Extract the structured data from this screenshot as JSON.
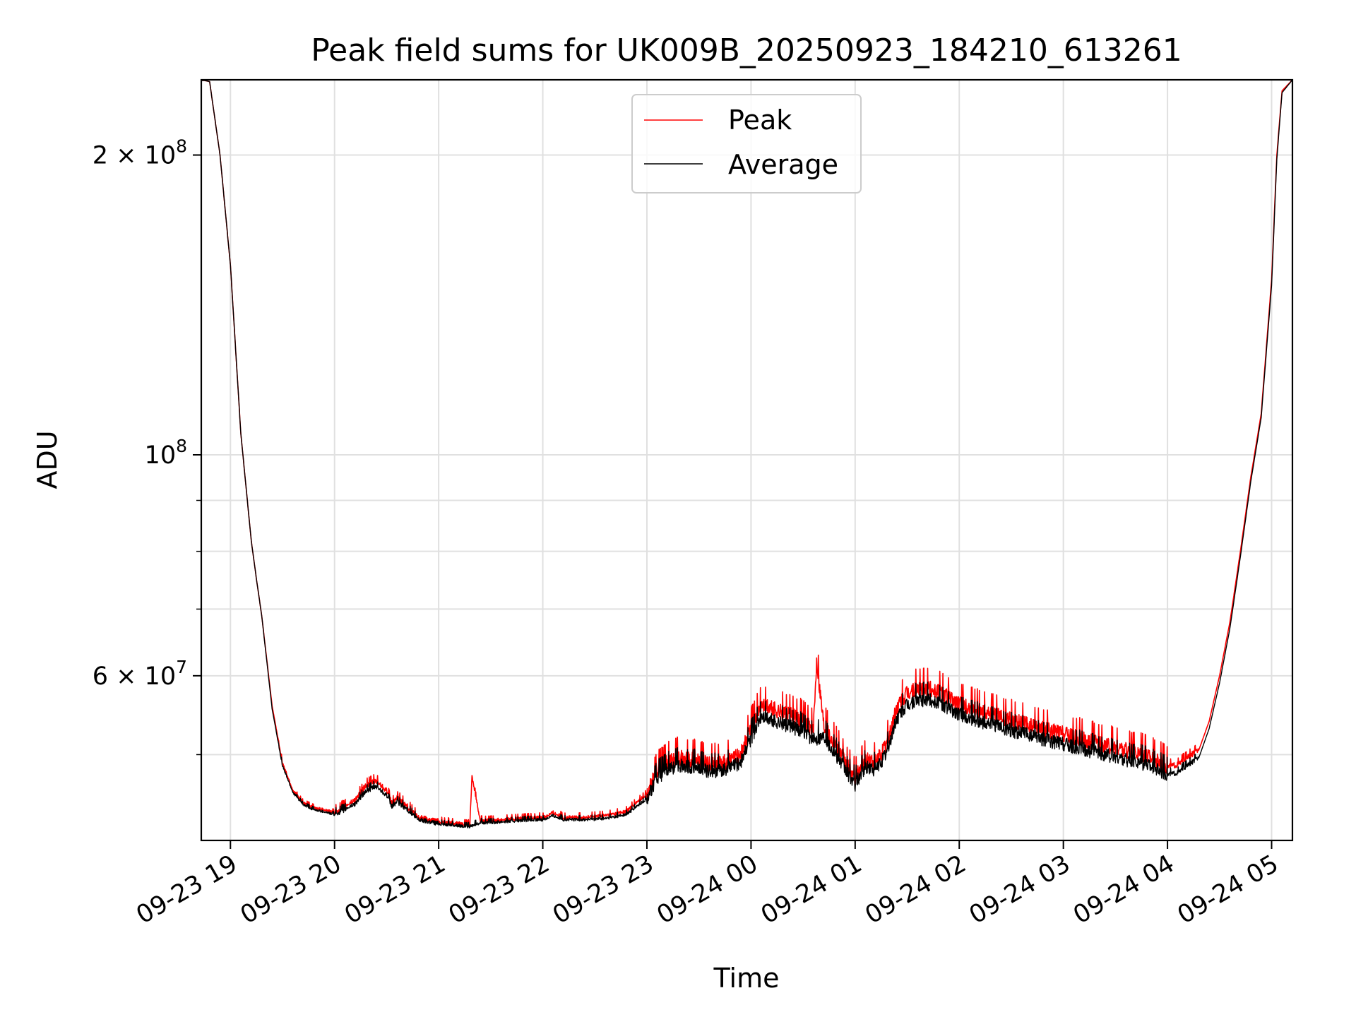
{
  "chart_data": {
    "type": "line",
    "title": "Peak field sums for UK009B_20250923_184210_613261",
    "xlabel": "Time",
    "ylabel": "ADU",
    "yscale": "log",
    "ylim": [
      41000000,
      238000000
    ],
    "x_unit": "hours since 09-23 19:00",
    "xlim": [
      -0.28,
      10.2
    ],
    "x_ticks": [
      {
        "value": 0,
        "label": "09-23 19"
      },
      {
        "value": 1,
        "label": "09-23 20"
      },
      {
        "value": 2,
        "label": "09-23 21"
      },
      {
        "value": 3,
        "label": "09-23 22"
      },
      {
        "value": 4,
        "label": "09-23 23"
      },
      {
        "value": 5,
        "label": "09-24 00"
      },
      {
        "value": 6,
        "label": "09-24 01"
      },
      {
        "value": 7,
        "label": "09-24 02"
      },
      {
        "value": 8,
        "label": "09-24 03"
      },
      {
        "value": 9,
        "label": "09-24 04"
      },
      {
        "value": 10,
        "label": "09-24 05"
      }
    ],
    "y_major_ticks": [
      {
        "value": 200000000,
        "mantissa": "2",
        "exponent": "8"
      },
      {
        "value": 100000000,
        "mantissa": "",
        "exponent": "8"
      },
      {
        "value": 60000000,
        "mantissa": "6",
        "exponent": "7"
      }
    ],
    "y_minor_ticks": [
      50000000,
      70000000,
      80000000,
      90000000
    ],
    "grid": true,
    "legend_position": "top-center",
    "series": [
      {
        "name": "Peak",
        "color": "#ff0000",
        "x": [
          -0.28,
          -0.2,
          -0.1,
          0,
          0.1,
          0.2,
          0.25,
          0.3,
          0.4,
          0.5,
          0.6,
          0.7,
          0.8,
          0.9,
          1.0,
          1.1,
          1.2,
          1.3,
          1.4,
          1.5,
          1.55,
          1.6,
          1.7,
          1.8,
          1.9,
          2.0,
          2.1,
          2.2,
          2.3,
          2.32,
          2.4,
          2.5,
          2.6,
          2.8,
          3.0,
          3.1,
          3.2,
          3.4,
          3.6,
          3.8,
          3.9,
          4.0,
          4.1,
          4.2,
          4.3,
          4.4,
          4.5,
          4.6,
          4.7,
          4.8,
          4.9,
          5.0,
          5.1,
          5.2,
          5.3,
          5.4,
          5.5,
          5.6,
          5.63,
          5.7,
          5.8,
          5.9,
          6.0,
          6.1,
          6.2,
          6.3,
          6.4,
          6.5,
          6.6,
          6.7,
          6.8,
          6.9,
          7.0,
          7.2,
          7.4,
          7.6,
          7.8,
          8.0,
          8.2,
          8.4,
          8.6,
          8.8,
          9.0,
          9.1,
          9.2,
          9.3,
          9.4,
          9.5,
          9.6,
          9.7,
          9.8,
          9.9,
          10.0,
          10.05,
          10.1,
          10.2
        ],
        "y": [
          238000000,
          237000000,
          200000000,
          155000000,
          105000000,
          82000000,
          75000000,
          69000000,
          56000000,
          49000000,
          46000000,
          44700000,
          44200000,
          44000000,
          43700000,
          44300000,
          45000000,
          46500000,
          47000000,
          46000000,
          44600000,
          45200000,
          44300000,
          43200000,
          43000000,
          42800000,
          42700000,
          42600000,
          42500000,
          47500000,
          42900000,
          42900000,
          43000000,
          43100000,
          43200000,
          43700000,
          43200000,
          43200000,
          43400000,
          43800000,
          44700000,
          45600000,
          48000000,
          49000000,
          49600000,
          49300000,
          49200000,
          48800000,
          48900000,
          49200000,
          49900000,
          53000000,
          56000000,
          55500000,
          55000000,
          54500000,
          54000000,
          52800000,
          62000000,
          53400000,
          51200000,
          49000000,
          47200000,
          49200000,
          49000000,
          51000000,
          55500000,
          57400000,
          58000000,
          58200000,
          57700000,
          56900000,
          56000000,
          55200000,
          54400000,
          53600000,
          52900000,
          52300000,
          51600000,
          50900000,
          50400000,
          49800000,
          48600000,
          48800000,
          49700000,
          50500000,
          54000000,
          60000000,
          68000000,
          80000000,
          95000000,
          110000000,
          150000000,
          200000000,
          232000000,
          238000000
        ]
      },
      {
        "name": "Average",
        "color": "#000000",
        "x": [
          -0.28,
          -0.2,
          -0.1,
          0,
          0.1,
          0.2,
          0.25,
          0.3,
          0.4,
          0.5,
          0.6,
          0.7,
          0.8,
          0.9,
          1.0,
          1.1,
          1.2,
          1.3,
          1.4,
          1.5,
          1.55,
          1.6,
          1.7,
          1.8,
          1.9,
          2.0,
          2.1,
          2.2,
          2.3,
          2.32,
          2.4,
          2.5,
          2.6,
          2.8,
          3.0,
          3.1,
          3.2,
          3.4,
          3.6,
          3.8,
          3.9,
          4.0,
          4.1,
          4.2,
          4.3,
          4.4,
          4.5,
          4.6,
          4.7,
          4.8,
          4.9,
          5.0,
          5.1,
          5.2,
          5.3,
          5.4,
          5.5,
          5.6,
          5.63,
          5.7,
          5.8,
          5.9,
          6.0,
          6.1,
          6.2,
          6.3,
          6.4,
          6.5,
          6.6,
          6.7,
          6.8,
          6.9,
          7.0,
          7.2,
          7.4,
          7.6,
          7.8,
          8.0,
          8.2,
          8.4,
          8.6,
          8.8,
          9.0,
          9.1,
          9.2,
          9.3,
          9.4,
          9.5,
          9.6,
          9.7,
          9.8,
          9.9,
          10.0,
          10.05,
          10.1,
          10.2
        ],
        "y": [
          238000000,
          237000000,
          200000000,
          155000000,
          105000000,
          82000000,
          75000000,
          69000000,
          55600000,
          48700000,
          45800000,
          44500000,
          44000000,
          43800000,
          43500000,
          44000000,
          44600000,
          45900000,
          46400000,
          45500000,
          44300000,
          44800000,
          44000000,
          43000000,
          42800000,
          42600000,
          42500000,
          42400000,
          42300000,
          42400000,
          42700000,
          42700000,
          42800000,
          42900000,
          43000000,
          43400000,
          43000000,
          43000000,
          43100000,
          43500000,
          44300000,
          45100000,
          47300000,
          48200000,
          48700000,
          48500000,
          48400000,
          48000000,
          48100000,
          48400000,
          49000000,
          51800000,
          54500000,
          54000000,
          53600000,
          53100000,
          52700000,
          51600000,
          51800000,
          52100000,
          50100000,
          48200000,
          46600000,
          48400000,
          48200000,
          50000000,
          54200000,
          55900000,
          56500000,
          56700000,
          56200000,
          55500000,
          54700000,
          53900000,
          53100000,
          52400000,
          51700000,
          51100000,
          50500000,
          49800000,
          49300000,
          48800000,
          47700000,
          47900000,
          48800000,
          49600000,
          53100000,
          59000000,
          67000000,
          79000000,
          94000000,
          109000000,
          148000000,
          198000000,
          231000000,
          238000000
        ]
      }
    ]
  }
}
